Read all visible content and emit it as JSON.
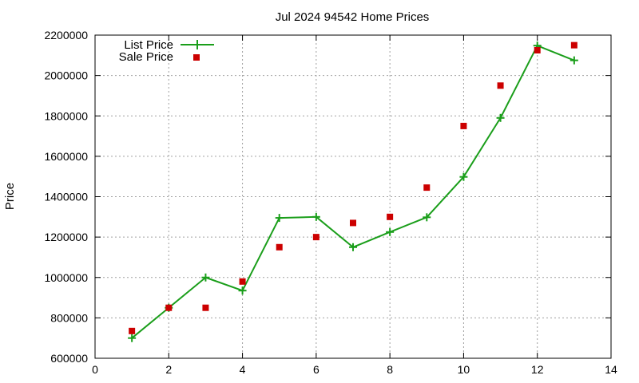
{
  "chart_data": {
    "type": "line",
    "title": "Jul 2024 94542 Home Prices",
    "xlabel": "",
    "ylabel": "Price",
    "xlim": [
      0,
      14
    ],
    "ylim": [
      600000,
      2200000
    ],
    "x_ticks": [
      0,
      2,
      4,
      6,
      8,
      10,
      12,
      14
    ],
    "y_ticks": [
      600000,
      800000,
      1000000,
      1200000,
      1400000,
      1600000,
      1800000,
      2000000,
      2200000
    ],
    "grid": true,
    "legend_position": "top-left",
    "series": [
      {
        "name": "List Price",
        "style": "line-with-plus-markers",
        "color": "#1a9e1a",
        "x": [
          1,
          2,
          3,
          4,
          5,
          6,
          7,
          8,
          9,
          10,
          11,
          12,
          13
        ],
        "y": [
          700000,
          850000,
          1000000,
          935000,
          1295000,
          1300000,
          1150000,
          1225000,
          1298000,
          1498000,
          1790000,
          2148000,
          2075000
        ]
      },
      {
        "name": "Sale Price",
        "style": "square-markers",
        "color": "#cc0000",
        "x": [
          1,
          2,
          3,
          4,
          5,
          6,
          7,
          8,
          9,
          10,
          11,
          12,
          13
        ],
        "y": [
          735000,
          850000,
          850000,
          980000,
          1150000,
          1200000,
          1270000,
          1300000,
          1445000,
          1750000,
          1950000,
          2125000,
          2150000
        ]
      }
    ]
  }
}
